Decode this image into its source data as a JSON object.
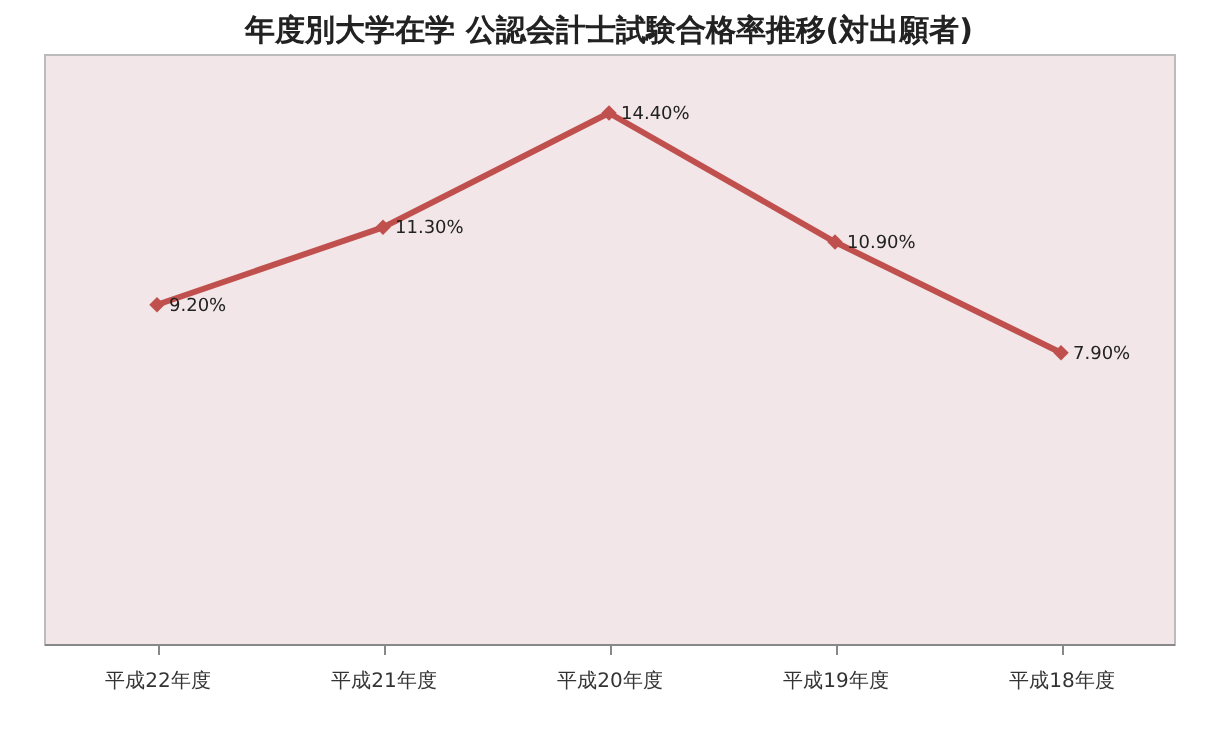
{
  "chart_data": {
    "type": "line",
    "title": "年度別大学在学  公認会計士試験合格率推移(対出願者)",
    "categories": [
      "平成22年度",
      "平成21年度",
      "平成20年度",
      "平成19年度",
      "平成18年度"
    ],
    "series": [
      {
        "color": "#c0504d",
        "values": [
          9.2,
          11.3,
          14.4,
          10.9,
          7.9
        ],
        "value_labels": [
          "9.20%",
          "11.30%",
          "14.40%",
          "10.90%",
          "7.90%"
        ]
      }
    ],
    "ylim": [
      0,
      16
    ],
    "tick_labels": "x",
    "marker": "diamond",
    "line_style": "solid",
    "grid": false
  }
}
